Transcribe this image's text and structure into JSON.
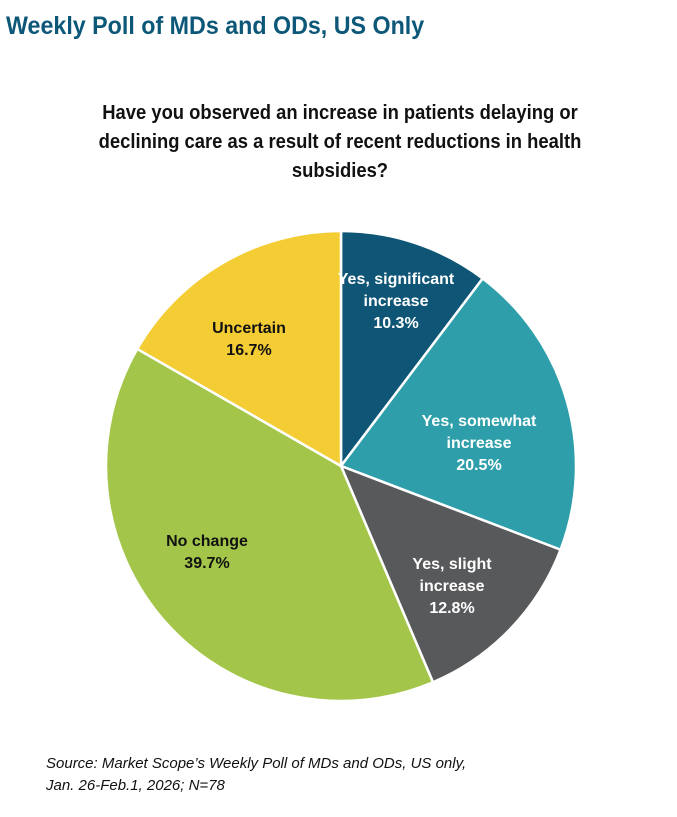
{
  "header": {
    "title": "Weekly Poll of MDs and ODs, US Only"
  },
  "chart_data": {
    "type": "pie",
    "title": "Have you observed an increase in patients delaying or declining care as a result of recent reductions in health subsidies?",
    "slices": [
      {
        "label": "Yes, significant increase",
        "value": 10.3,
        "value_label": "10.3%",
        "color": "#0f5576",
        "text_color": "#ffffff"
      },
      {
        "label": "Yes, somewhat increase",
        "value": 20.5,
        "value_label": "20.5%",
        "color": "#2e9faa",
        "text_color": "#ffffff"
      },
      {
        "label": "Yes, slight increase",
        "value": 12.8,
        "value_label": "12.8%",
        "color": "#58595b",
        "text_color": "#ffffff"
      },
      {
        "label": "No change",
        "value": 39.7,
        "value_label": "39.7%",
        "color": "#a3c64a",
        "text_color": "#111111"
      },
      {
        "label": "Uncertain",
        "value": 16.7,
        "value_label": "16.7%",
        "color": "#f4cd35",
        "text_color": "#111111"
      }
    ],
    "start": "top",
    "direction": "clockwise"
  },
  "footer": {
    "source_line1": "Source: Market Scope’s Weekly Poll of MDs and ODs, US only,",
    "source_line2": "Jan. 26-Feb.1, 2026; N=78"
  }
}
